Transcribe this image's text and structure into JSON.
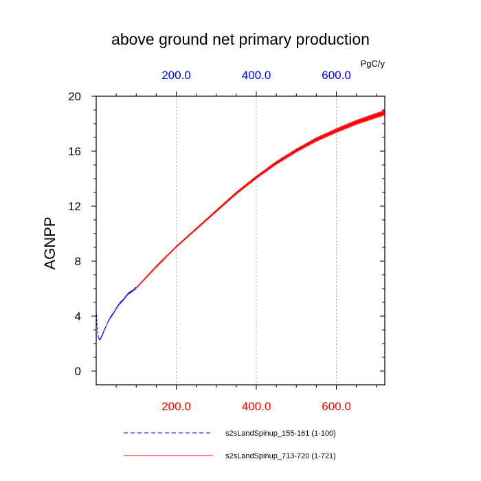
{
  "chart_data": {
    "type": "line",
    "title": "above ground net primary production",
    "ylabel": "AGNPP",
    "units": "PgC/y",
    "xlim": [
      0,
      721
    ],
    "ylim": [
      -1,
      20
    ],
    "y_ticks": [
      0,
      4,
      8,
      12,
      16,
      20
    ],
    "y_tick_labels": [
      "0",
      "4",
      "8",
      "12",
      "16",
      "20"
    ],
    "bottom_axis": {
      "ticks": [
        200,
        400,
        600
      ],
      "tick_labels": [
        "200.0",
        "400.0",
        "600.0"
      ],
      "color": "#ff0000"
    },
    "top_axis": {
      "ticks": [
        200,
        400,
        600
      ],
      "tick_labels": [
        "200.0",
        "400.0",
        "600.0"
      ],
      "color": "#0000ff"
    },
    "vertical_gridlines": [
      200,
      400,
      600
    ],
    "series": [
      {
        "name": "s2sLandSpinup_155-161 (1-100)",
        "color": "#0000ff",
        "dash": "dashed",
        "x": [
          1,
          2,
          3,
          5,
          8,
          10,
          15,
          20,
          30,
          40,
          50,
          60,
          70,
          80,
          90,
          100
        ],
        "values": [
          4.1,
          3.3,
          2.9,
          2.5,
          2.25,
          2.3,
          2.6,
          3.0,
          3.6,
          4.1,
          4.55,
          4.95,
          5.3,
          5.6,
          5.85,
          6.05
        ]
      },
      {
        "name": "s2sLandSpinup_713-720 (1-721)",
        "color": "#ff0000",
        "dash": "solid",
        "x": [
          100,
          150,
          200,
          250,
          300,
          350,
          400,
          450,
          500,
          550,
          600,
          650,
          700,
          721
        ],
        "values": [
          6.05,
          7.6,
          9.05,
          10.35,
          11.65,
          12.95,
          14.1,
          15.15,
          16.05,
          16.85,
          17.5,
          18.1,
          18.6,
          18.8
        ]
      }
    ]
  }
}
